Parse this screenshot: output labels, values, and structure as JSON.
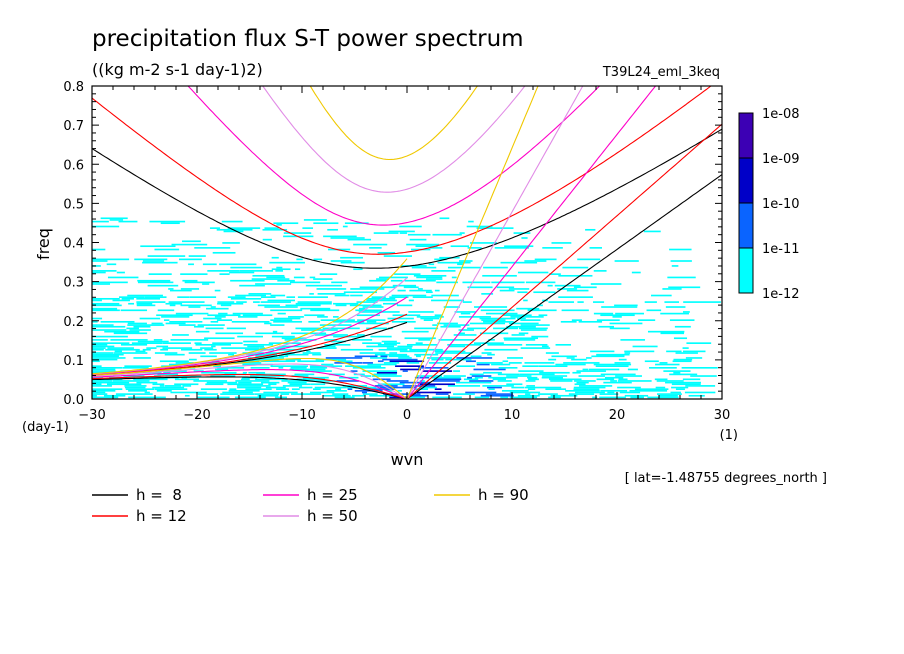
{
  "chart_data": {
    "type": "heatmap",
    "title": "precipitation flux S-T power spectrum",
    "units": "((kg m-2 s-1 day-1)2)",
    "run_label": "T39L24_eml_3keq",
    "xlabel": "wvn",
    "ylabel": "freq",
    "x_unit": "(1)",
    "y_unit": "(day-1)",
    "footnote": "[ lat=-1.48755 degrees_north ]",
    "xlim": [
      -30,
      30
    ],
    "ylim": [
      0,
      0.8
    ],
    "x_ticks": [
      -30,
      -20,
      -10,
      0,
      10,
      20,
      30
    ],
    "y_ticks": [
      0.0,
      0.1,
      0.2,
      0.3,
      0.4,
      0.5,
      0.6,
      0.7,
      0.8
    ],
    "colorbar": {
      "levels": [
        "1e-12",
        "1e-11",
        "1e-10",
        "1e-09",
        "1e-08"
      ],
      "colors": [
        "#00ffff",
        "#0a64ff",
        "#0000c8",
        "#3c00b4"
      ]
    },
    "shaded_region": "power between 1e-12 and 1e-11 scattered mostly over freq 0 to 0.45, wvn -30 to 27; higher power patches near wvn 0, freq below 0.1",
    "series": [
      {
        "name": "h =  8",
        "color": "#000000",
        "equivalent_depth_m": 8
      },
      {
        "name": "h = 12",
        "color": "#ff0000",
        "equivalent_depth_m": 12
      },
      {
        "name": "h = 25",
        "color": "#ff00c8",
        "equivalent_depth_m": 25
      },
      {
        "name": "h = 50",
        "color": "#e18ce6",
        "equivalent_depth_m": 50
      },
      {
        "name": "h = 90",
        "color": "#f0c800",
        "equivalent_depth_m": 90
      }
    ]
  }
}
